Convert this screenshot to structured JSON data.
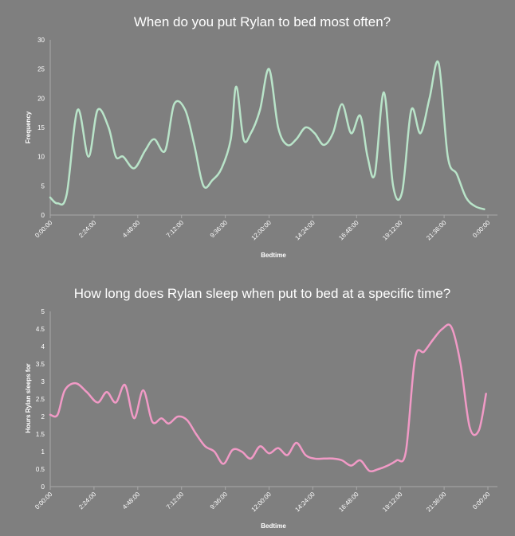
{
  "colors": {
    "background": "#7f7f7f",
    "text": "#ffffff",
    "axis": "#a9a9a9"
  },
  "chart_data": [
    {
      "type": "line",
      "title": "When do you put Rylan to bed most often?",
      "xlabel": "Bedtime",
      "ylabel": "Frequency",
      "xlim": [
        0,
        24
      ],
      "ylim": [
        0,
        30
      ],
      "x_ticks": [
        "0:00:00",
        "2:24:00",
        "4:48:00",
        "7:12:00",
        "9:36:00",
        "12:00:00",
        "14:24:00",
        "16:48:00",
        "19:12:00",
        "21:36:00",
        "0:00:00"
      ],
      "y_ticks": [
        "0",
        "5",
        "10",
        "15",
        "20",
        "25",
        "30"
      ],
      "series": [
        {
          "color": "#b9e4c9",
          "x": [
            0,
            0.4,
            0.9,
            1.5,
            2.1,
            2.6,
            3.2,
            3.6,
            4.0,
            4.6,
            5.2,
            5.7,
            6.3,
            6.8,
            7.4,
            7.9,
            8.4,
            8.9,
            9.4,
            9.9,
            10.2,
            10.6,
            11.0,
            11.5,
            12.0,
            12.5,
            13.0,
            13.5,
            14.0,
            14.5,
            15.0,
            15.5,
            16.0,
            16.5,
            17.0,
            17.4,
            17.8,
            18.3,
            18.8,
            19.3,
            19.8,
            20.3,
            20.8,
            21.3,
            21.8,
            22.3,
            22.8,
            23.3,
            23.8
          ],
          "y": [
            3,
            2,
            3.5,
            18,
            10,
            18,
            15,
            10,
            10,
            8,
            11,
            13,
            11,
            19,
            18,
            12,
            5,
            6,
            8,
            13,
            22,
            13,
            14,
            18,
            25,
            15,
            12,
            13,
            15,
            14,
            12,
            14,
            19,
            14,
            17,
            10,
            7,
            21,
            5,
            4,
            18,
            14,
            20,
            26,
            10,
            7,
            3,
            1.5,
            1
          ]
        }
      ]
    },
    {
      "type": "line",
      "title": "How long does Rylan sleep when put to bed at a specific time?",
      "xlabel": "Bedtime",
      "ylabel": "Hours Rylan sleeps for",
      "xlim": [
        0,
        24
      ],
      "ylim": [
        0,
        5
      ],
      "x_ticks": [
        "0:00:00",
        "2:24:00",
        "4:48:00",
        "7:12:00",
        "9:36:00",
        "12:00:00",
        "14:24:00",
        "16:48:00",
        "19:12:00",
        "21:36:00",
        "0:00:00"
      ],
      "y_ticks": [
        "0",
        "0.5",
        "1",
        "1.5",
        "2",
        "2.5",
        "3",
        "3.5",
        "4",
        "4.5",
        "5"
      ],
      "series": [
        {
          "color": "#f19ac6",
          "x": [
            0,
            0.4,
            0.8,
            1.4,
            2.0,
            2.6,
            3.1,
            3.6,
            4.1,
            4.6,
            5.1,
            5.6,
            6.1,
            6.5,
            7.0,
            7.5,
            8.0,
            8.5,
            9.0,
            9.5,
            10.0,
            10.5,
            11.0,
            11.5,
            12.0,
            12.5,
            13.0,
            13.5,
            14.0,
            14.5,
            15.0,
            15.5,
            16.0,
            16.5,
            17.0,
            17.5,
            18.0,
            18.5,
            19.0,
            19.5,
            20.0,
            20.5,
            21.0,
            21.5,
            22.0,
            22.5,
            23.0,
            23.5,
            23.9
          ],
          "y": [
            2.05,
            2.05,
            2.75,
            2.95,
            2.7,
            2.4,
            2.7,
            2.4,
            2.9,
            1.95,
            2.75,
            1.85,
            1.95,
            1.8,
            2.0,
            1.9,
            1.5,
            1.15,
            1.0,
            0.65,
            1.05,
            1.0,
            0.8,
            1.15,
            0.95,
            1.1,
            0.9,
            1.25,
            0.9,
            0.8,
            0.8,
            0.8,
            0.75,
            0.6,
            0.75,
            0.45,
            0.5,
            0.6,
            0.75,
            1.0,
            3.65,
            3.85,
            4.2,
            4.5,
            4.55,
            3.5,
            1.7,
            1.6,
            2.65
          ]
        }
      ]
    }
  ]
}
